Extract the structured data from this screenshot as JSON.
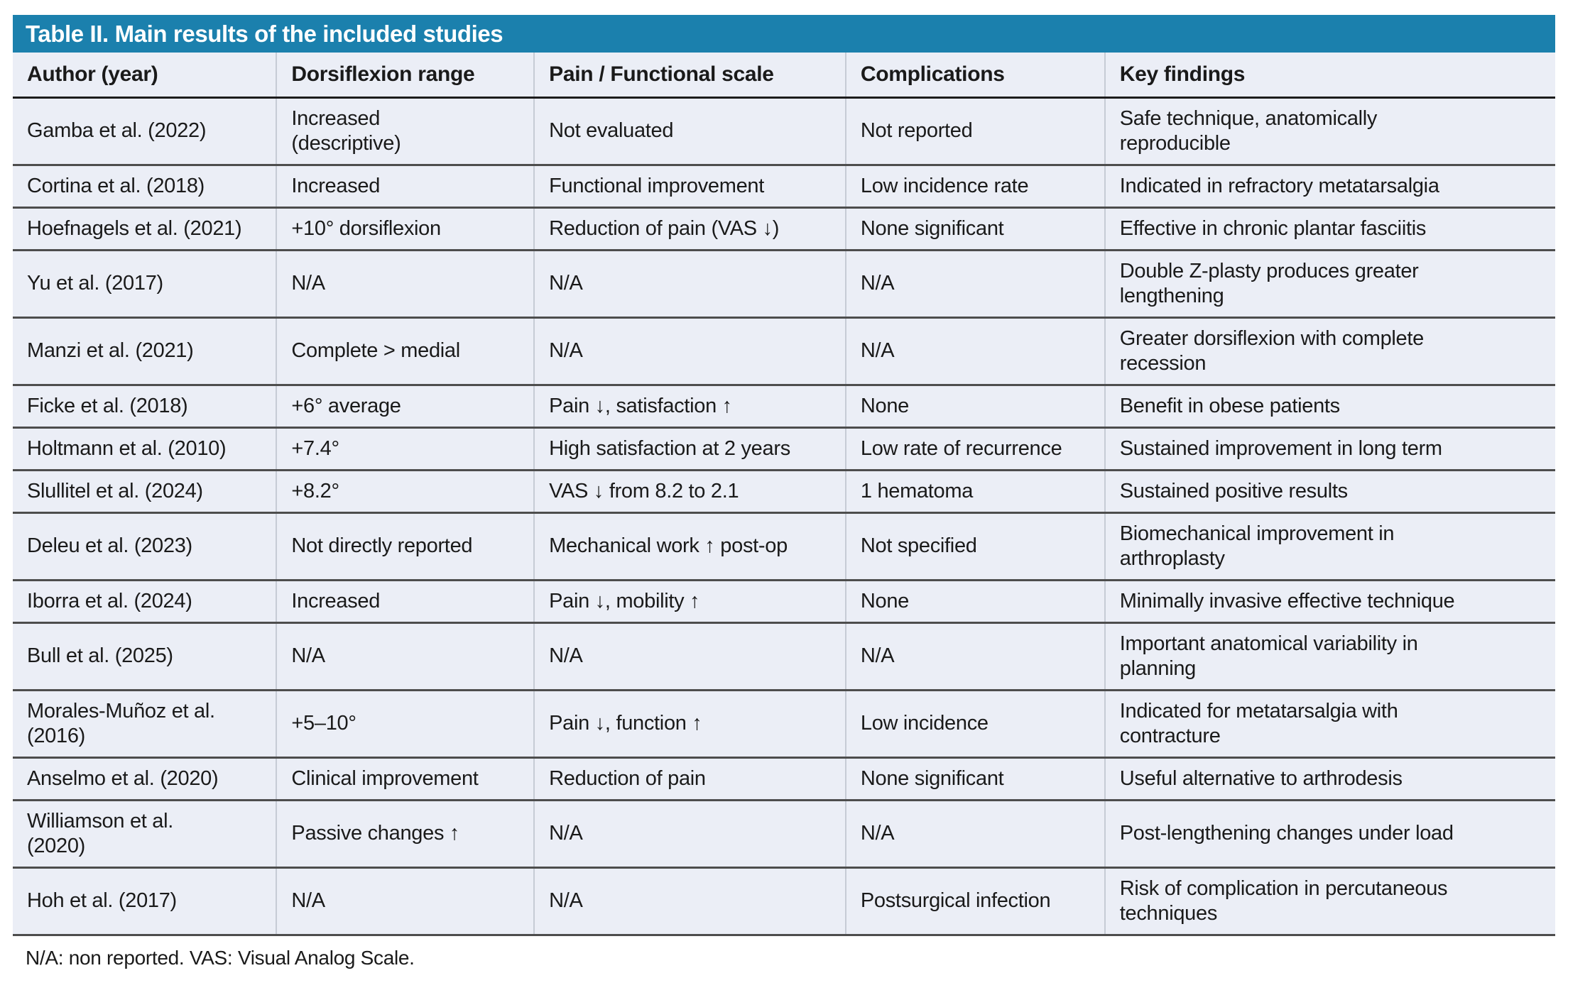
{
  "colors": {
    "header_bar": "#1b80ad",
    "title_text": "#ffffff",
    "row_background": "#ebeef6",
    "row_divider": "#4d4d4d",
    "column_divider": "#c6cbd5",
    "header_divider": "#1c1c1c",
    "body_text": "#1a1a1a"
  },
  "table": {
    "title": "Table II. Main results of the included studies",
    "columns": [
      "Author (year)",
      "Dorsiflexion range",
      "Pain / Functional scale",
      "Complications",
      "Key findings"
    ],
    "rows": [
      [
        "Gamba et al. (2022)",
        "Increased\n(descriptive)",
        "Not evaluated",
        "Not reported",
        "Safe technique, anatomically\nreproducible"
      ],
      [
        "Cortina et al. (2018)",
        "Increased",
        "Functional improvement",
        "Low incidence rate",
        "Indicated in refractory metatarsalgia"
      ],
      [
        "Hoefnagels et al. (2021)",
        "+10° dorsiflexion",
        "Reduction of pain (VAS ↓)",
        "None significant",
        "Effective in chronic plantar fasciitis"
      ],
      [
        "Yu et al. (2017)",
        "N/A",
        "N/A",
        "N/A",
        "Double Z-plasty produces greater\nlengthening"
      ],
      [
        "Manzi et al. (2021)",
        "Complete > medial",
        "N/A",
        "N/A",
        "Greater dorsiflexion with complete\nrecession"
      ],
      [
        "Ficke et al. (2018)",
        "+6° average",
        "Pain ↓, satisfaction ↑",
        "None",
        "Benefit in obese patients"
      ],
      [
        "Holtmann et al. (2010)",
        "+7.4°",
        "High satisfaction at 2 years",
        "Low rate of recurrence",
        "Sustained improvement in long term"
      ],
      [
        "Slullitel et al. (2024)",
        "+8.2°",
        "VAS ↓ from 8.2 to 2.1",
        "1 hematoma",
        "Sustained positive results"
      ],
      [
        "Deleu et al. (2023)",
        "Not directly reported",
        "Mechanical work ↑ post-op",
        "Not specified",
        "Biomechanical improvement in\narthroplasty"
      ],
      [
        "Iborra et al. (2024)",
        "Increased",
        "Pain ↓, mobility ↑",
        "None",
        "Minimally invasive effective technique"
      ],
      [
        "Bull et al. (2025)",
        "N/A",
        "N/A",
        "N/A",
        "Important anatomical variability in\nplanning"
      ],
      [
        "Morales-Muñoz et al.\n(2016)",
        "+5–10°",
        "Pain ↓, function ↑",
        "Low incidence",
        "Indicated for metatarsalgia with\ncontracture"
      ],
      [
        "Anselmo et al. (2020)",
        "Clinical improvement",
        "Reduction of pain",
        "None significant",
        "Useful alternative to arthrodesis"
      ],
      [
        "Williamson et al.\n(2020)",
        "Passive changes ↑",
        "N/A",
        "N/A",
        "Post-lengthening changes under load"
      ],
      [
        "Hoh et al. (2017)",
        "N/A",
        "N/A",
        "Postsurgical infection",
        "Risk of complication in percutaneous\ntechniques"
      ]
    ]
  },
  "footnote": "N/A: non reported. VAS: Visual Analog Scale."
}
